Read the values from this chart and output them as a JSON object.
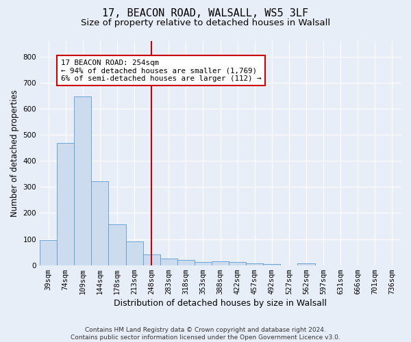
{
  "title_line1": "17, BEACON ROAD, WALSALL, WS5 3LF",
  "title_line2": "Size of property relative to detached houses in Walsall",
  "xlabel": "Distribution of detached houses by size in Walsall",
  "ylabel": "Number of detached properties",
  "categories": [
    "39sqm",
    "74sqm",
    "109sqm",
    "144sqm",
    "178sqm",
    "213sqm",
    "248sqm",
    "283sqm",
    "318sqm",
    "353sqm",
    "388sqm",
    "422sqm",
    "457sqm",
    "492sqm",
    "527sqm",
    "562sqm",
    "597sqm",
    "631sqm",
    "666sqm",
    "701sqm",
    "736sqm"
  ],
  "values": [
    95,
    470,
    648,
    323,
    157,
    92,
    40,
    25,
    20,
    13,
    15,
    12,
    8,
    5,
    0,
    7,
    0,
    0,
    0,
    0,
    0
  ],
  "bar_color": "#ccdcee",
  "bar_edge_color": "#5b9bd5",
  "vline_index": 6,
  "vline_color": "#cc0000",
  "annotation_line1": "17 BEACON ROAD: 254sqm",
  "annotation_line2": "← 94% of detached houses are smaller (1,769)",
  "annotation_line3": "6% of semi-detached houses are larger (112) →",
  "annotation_box_edgecolor": "#cc0000",
  "annotation_bg_color": "#ffffff",
  "ylim": [
    0,
    860
  ],
  "yticks": [
    0,
    100,
    200,
    300,
    400,
    500,
    600,
    700,
    800
  ],
  "background_color": "#e8eef8",
  "footer_line1": "Contains HM Land Registry data © Crown copyright and database right 2024.",
  "footer_line2": "Contains public sector information licensed under the Open Government Licence v3.0.",
  "grid_color": "#ffffff",
  "title_fontsize": 11,
  "subtitle_fontsize": 9.5,
  "axis_label_fontsize": 8.5,
  "tick_fontsize": 7.5,
  "footer_fontsize": 6.5
}
